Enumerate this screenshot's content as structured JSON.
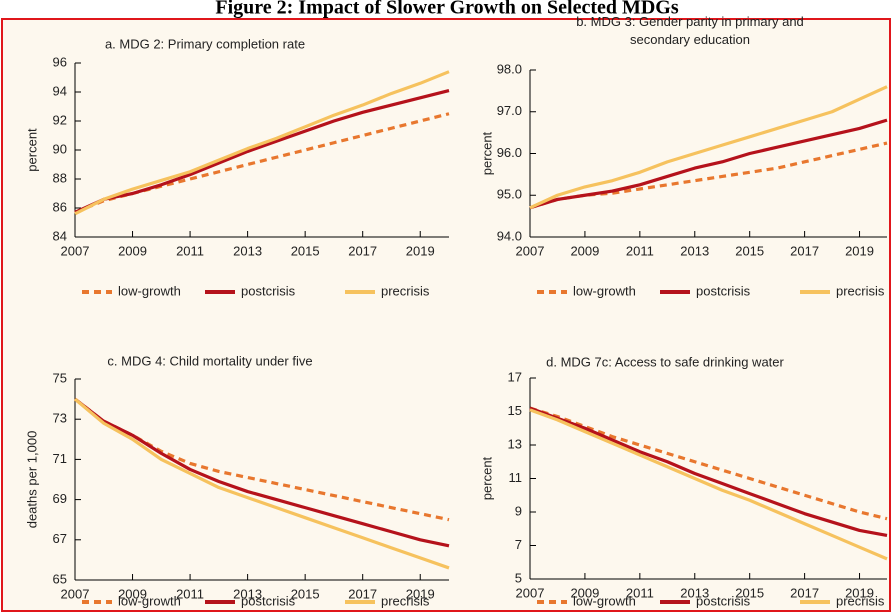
{
  "title": "Figure 2: Impact of Slower Growth on Selected MDGs",
  "chart_data": [
    {
      "type": "line",
      "title": "a. MDG 2: Primary completion rate",
      "ylabel": "percent",
      "x": [
        2007,
        2008,
        2009,
        2010,
        2011,
        2012,
        2013,
        2014,
        2015,
        2016,
        2017,
        2018,
        2019,
        2020
      ],
      "xlim": [
        2007,
        2020
      ],
      "xticks": [
        2007,
        2009,
        2011,
        2013,
        2015,
        2017,
        2019
      ],
      "ylim": [
        84,
        96
      ],
      "yticks": [
        84,
        86,
        88,
        90,
        92,
        94,
        96
      ],
      "series": [
        {
          "name": "low-growth",
          "color": "#e8772e",
          "dashed": true,
          "values": [
            85.7,
            86.5,
            87.0,
            87.5,
            88.0,
            88.5,
            89.0,
            89.5,
            90.0,
            90.5,
            91.0,
            91.5,
            92.0,
            92.5
          ]
        },
        {
          "name": "postcrisis",
          "color": "#b5121b",
          "values": [
            85.7,
            86.6,
            87.0,
            87.6,
            88.3,
            89.1,
            89.9,
            90.6,
            91.3,
            92.0,
            92.6,
            93.1,
            93.6,
            94.1
          ]
        },
        {
          "name": "precrisis",
          "color": "#f6c25e",
          "values": [
            85.6,
            86.6,
            87.3,
            87.9,
            88.5,
            89.3,
            90.1,
            90.8,
            91.6,
            92.4,
            93.1,
            93.9,
            94.6,
            95.4
          ]
        }
      ]
    },
    {
      "type": "line",
      "title": "b. MDG 3: Gender parity in primary and secondary education",
      "ylabel": "percent",
      "x": [
        2007,
        2008,
        2009,
        2010,
        2011,
        2012,
        2013,
        2014,
        2015,
        2016,
        2017,
        2018,
        2019,
        2020
      ],
      "xlim": [
        2007,
        2020
      ],
      "xticks": [
        2007,
        2009,
        2011,
        2013,
        2015,
        2017,
        2019
      ],
      "ylim": [
        94,
        98
      ],
      "yticks": [
        {
          "value": 94,
          "label": "94.0"
        },
        {
          "value": 95,
          "label": "95.0"
        },
        {
          "value": 96,
          "label": "96.0"
        },
        {
          "value": 97,
          "label": "97.0"
        },
        {
          "value": 98,
          "label": "98.0"
        }
      ],
      "series": [
        {
          "name": "low-growth",
          "color": "#e8772e",
          "dashed": true,
          "values": [
            94.7,
            94.9,
            95.0,
            95.05,
            95.15,
            95.25,
            95.35,
            95.45,
            95.55,
            95.65,
            95.8,
            95.95,
            96.1,
            96.25
          ]
        },
        {
          "name": "postcrisis",
          "color": "#b5121b",
          "values": [
            94.7,
            94.9,
            95.0,
            95.1,
            95.25,
            95.45,
            95.65,
            95.8,
            96.0,
            96.15,
            96.3,
            96.45,
            96.6,
            96.8
          ]
        },
        {
          "name": "precrisis",
          "color": "#f6c25e",
          "values": [
            94.7,
            95.0,
            95.2,
            95.35,
            95.55,
            95.8,
            96.0,
            96.2,
            96.4,
            96.6,
            96.8,
            97.0,
            97.3,
            97.6
          ]
        }
      ]
    },
    {
      "type": "line",
      "title": "c. MDG 4: Child mortality under five",
      "ylabel": "deaths per 1,000",
      "x": [
        2007,
        2008,
        2009,
        2010,
        2011,
        2012,
        2013,
        2014,
        2015,
        2016,
        2017,
        2018,
        2019,
        2020
      ],
      "xlim": [
        2007,
        2020
      ],
      "xticks": [
        2007,
        2009,
        2011,
        2013,
        2015,
        2017,
        2019
      ],
      "ylim": [
        65,
        75
      ],
      "yticks": [
        65,
        67,
        69,
        71,
        73,
        75
      ],
      "series": [
        {
          "name": "low-growth",
          "color": "#e8772e",
          "dashed": true,
          "values": [
            74.0,
            72.9,
            72.2,
            71.4,
            70.8,
            70.4,
            70.1,
            69.8,
            69.5,
            69.2,
            68.9,
            68.6,
            68.3,
            68.0
          ]
        },
        {
          "name": "postcrisis",
          "color": "#b5121b",
          "values": [
            74.0,
            72.9,
            72.2,
            71.3,
            70.5,
            69.9,
            69.4,
            69.0,
            68.6,
            68.2,
            67.8,
            67.4,
            67.0,
            66.7
          ]
        },
        {
          "name": "precrisis",
          "color": "#f6c25e",
          "values": [
            74.0,
            72.8,
            72.0,
            71.0,
            70.3,
            69.6,
            69.1,
            68.6,
            68.1,
            67.6,
            67.1,
            66.6,
            66.1,
            65.6
          ]
        }
      ]
    },
    {
      "type": "line",
      "title": "d. MDG 7c: Access to safe drinking water",
      "ylabel": "percent",
      "x": [
        2007,
        2008,
        2009,
        2010,
        2011,
        2012,
        2013,
        2014,
        2015,
        2016,
        2017,
        2018,
        2019,
        2020
      ],
      "xlim": [
        2007,
        2020
      ],
      "xticks": [
        2007,
        2009,
        2011,
        2013,
        2015,
        2017,
        2019
      ],
      "ylim": [
        5,
        17
      ],
      "yticks": [
        5,
        7,
        9,
        11,
        13,
        15,
        17
      ],
      "series": [
        {
          "name": "low-growth",
          "color": "#e8772e",
          "dashed": true,
          "values": [
            15.2,
            14.7,
            14.1,
            13.5,
            13.0,
            12.5,
            12.0,
            11.5,
            11.0,
            10.5,
            10.0,
            9.5,
            9.0,
            8.6
          ]
        },
        {
          "name": "postcrisis",
          "color": "#b5121b",
          "values": [
            15.2,
            14.6,
            14.0,
            13.3,
            12.6,
            12.0,
            11.3,
            10.7,
            10.1,
            9.5,
            8.9,
            8.4,
            7.9,
            7.6
          ]
        },
        {
          "name": "precrisis",
          "color": "#f6c25e",
          "values": [
            15.1,
            14.5,
            13.8,
            13.1,
            12.4,
            11.7,
            11.0,
            10.3,
            9.7,
            9.0,
            8.3,
            7.6,
            6.9,
            6.2
          ]
        }
      ]
    }
  ]
}
